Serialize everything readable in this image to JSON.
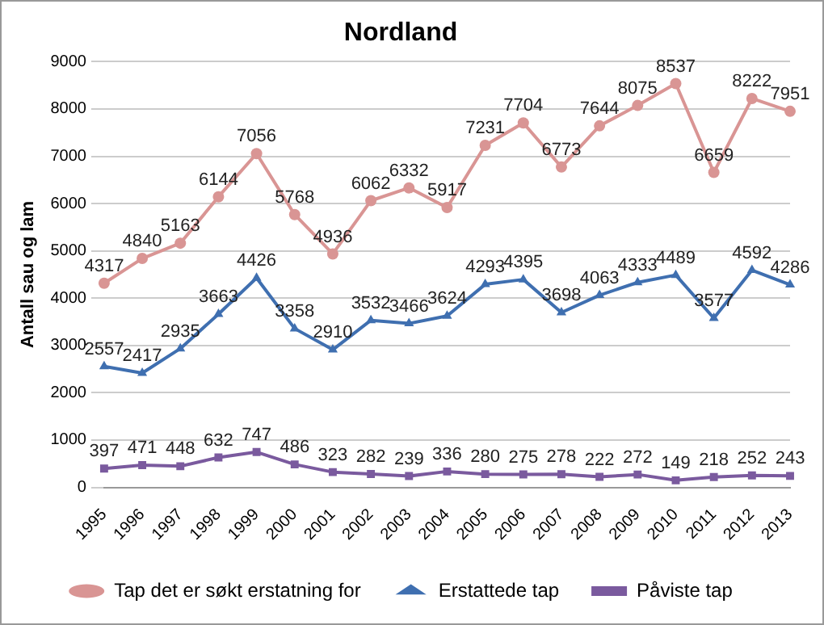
{
  "chart_data": {
    "type": "line",
    "title": "Nordland",
    "ylabel": "Antall sau og lam",
    "categories": [
      "1995",
      "1996",
      "1997",
      "1998",
      "1999",
      "2000",
      "2001",
      "2002",
      "2003",
      "2004",
      "2005",
      "2006",
      "2007",
      "2008",
      "2009",
      "2010",
      "2011",
      "2012",
      "2013"
    ],
    "series": [
      {
        "name": "Tap det er søkt erstatning for",
        "color": "#d99594",
        "marker": "circle",
        "values": [
          4317,
          4840,
          5163,
          6144,
          7056,
          5768,
          4936,
          6062,
          6332,
          5917,
          7231,
          7704,
          6773,
          7644,
          8075,
          8537,
          6659,
          8222,
          7951
        ]
      },
      {
        "name": "Erstattede tap",
        "color": "#3f6fb0",
        "marker": "triangle",
        "values": [
          2557,
          2417,
          2935,
          3663,
          4426,
          3358,
          2910,
          3532,
          3466,
          3624,
          4293,
          4395,
          3698,
          4063,
          4333,
          4489,
          3577,
          4592,
          4286
        ]
      },
      {
        "name": "Påviste tap",
        "color": "#7a5a9e",
        "marker": "square",
        "values": [
          397,
          471,
          448,
          632,
          747,
          486,
          323,
          282,
          239,
          336,
          280,
          275,
          278,
          222,
          272,
          149,
          218,
          252,
          243
        ]
      }
    ],
    "ylim": [
      0,
      9000
    ],
    "yticks": [
      0,
      1000,
      2000,
      3000,
      4000,
      5000,
      6000,
      7000,
      8000,
      9000
    ],
    "grid": "y",
    "legend": "bottom",
    "data_labels": true,
    "line_style": "solid"
  }
}
